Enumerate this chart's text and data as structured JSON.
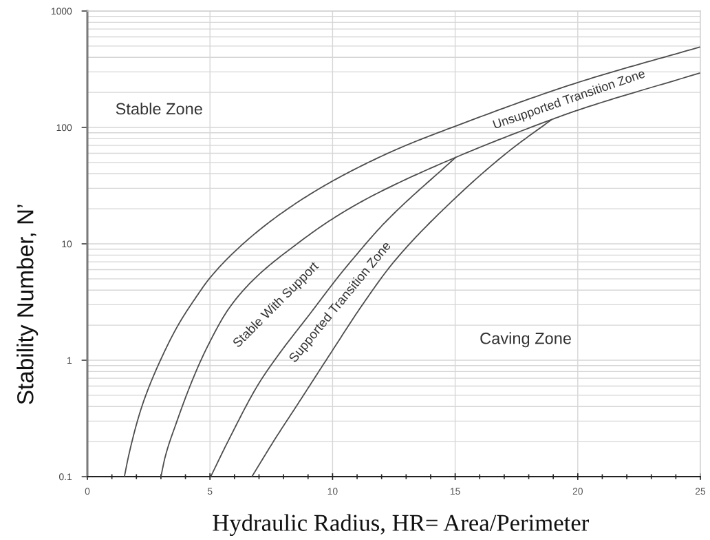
{
  "chart_data": {
    "type": "line",
    "xlabel": "Hydraulic Radius, HR= Area/Perimeter",
    "ylabel": "Stability Number, N’",
    "log": "y",
    "grid": true,
    "xlim": [
      0,
      25
    ],
    "ylim": [
      0.1,
      1000
    ],
    "xticks": [
      0,
      {
        "value": 1,
        "label": null
      },
      {
        "value": 2,
        "label": null
      },
      {
        "value": 3,
        "label": null
      },
      {
        "value": 4,
        "label": null
      },
      5,
      {
        "value": 6,
        "label": null
      },
      {
        "value": 7,
        "label": null
      },
      {
        "value": 8,
        "label": null
      },
      {
        "value": 9,
        "label": null
      },
      10,
      {
        "value": 11,
        "label": null
      },
      {
        "value": 12,
        "label": null
      },
      {
        "value": 13,
        "label": null
      },
      {
        "value": 14,
        "label": null
      },
      15,
      {
        "value": 16,
        "label": null
      },
      {
        "value": 17,
        "label": null
      },
      {
        "value": 18,
        "label": null
      },
      {
        "value": 19,
        "label": null
      },
      20,
      {
        "value": 21,
        "label": null
      },
      {
        "value": 22,
        "label": null
      },
      {
        "value": 23,
        "label": null
      },
      {
        "value": 24,
        "label": null
      },
      25
    ],
    "yticks": [
      0.1,
      1,
      10,
      100,
      1000
    ],
    "series": [
      {
        "color": "#4d4d4d",
        "x": [
          1.51,
          1.67,
          2.04,
          2.32,
          2.98,
          3.7,
          4.4,
          5.0,
          6.35,
          8.1,
          10.04,
          12.65,
          14.98,
          19.97,
          24.97
        ],
        "values": [
          0.1,
          0.147,
          0.3,
          0.46,
          1.0,
          2.0,
          3.4,
          5.1,
          10,
          19.5,
          35,
          65.3,
          102,
          242,
          490
        ]
      },
      {
        "color": "#4d4d4d",
        "x": [
          3.0,
          3.17,
          3.63,
          4.29,
          4.85,
          5.78,
          6.81,
          8.58,
          9.98,
          11.57,
          15.02,
          18.94,
          19.97,
          24.97
        ],
        "values": [
          0.1,
          0.147,
          0.29,
          0.68,
          1.25,
          2.8,
          5.0,
          10.1,
          16.3,
          25.5,
          55.3,
          117,
          140,
          293
        ]
      },
      {
        "color": "#4d4d4d",
        "x": [
          5.03,
          5.78,
          6.99,
          7.83,
          9.05,
          10.26,
          10.73,
          12.13,
          15.02
        ],
        "values": [
          0.1,
          0.21,
          0.63,
          1.14,
          2.46,
          5.3,
          7.0,
          15.2,
          55.3
        ]
      },
      {
        "color": "#4d4d4d",
        "x": [
          6.71,
          7.65,
          8.58,
          9.98,
          11.22,
          12.5,
          15.02,
          17.17,
          18.94
        ],
        "values": [
          0.1,
          0.21,
          0.42,
          1.2,
          3.0,
          7.0,
          24.9,
          62,
          117
        ]
      }
    ],
    "annotations": [
      "Stable Zone",
      "Caving Zone",
      "Stable With Support",
      "Supported Transition Zone",
      "Unsupported Transition Zone"
    ]
  }
}
